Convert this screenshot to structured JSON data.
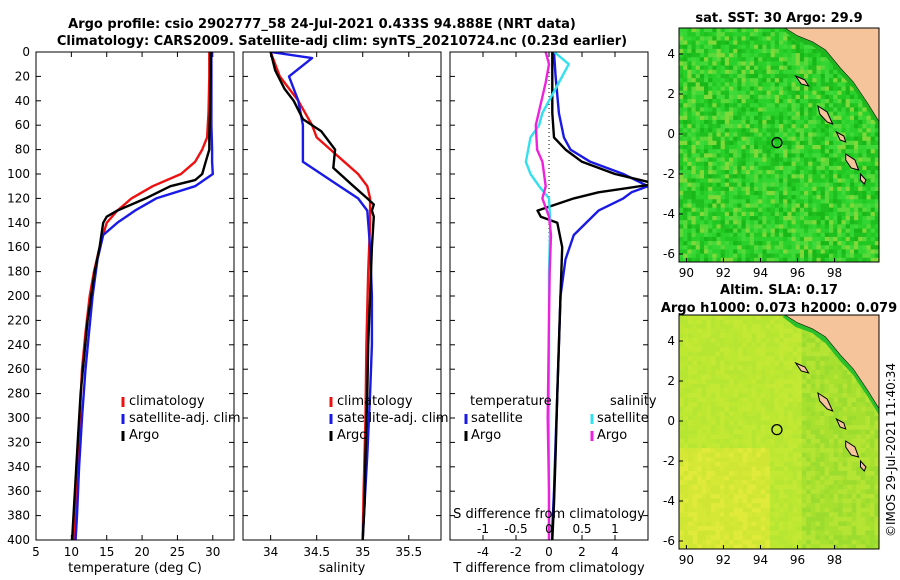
{
  "titles": {
    "line1": "Argo profile: csio 2902777_58 24-Jul-2021 0.433S 94.888E (NRT data)",
    "line2": "Climatology: CARS2009. Satellite-adj clim: synTS_20210724.nc (0.23d earlier)"
  },
  "colors": {
    "climatology": "#ee1111",
    "satellite": "#1a1ae6",
    "argo": "#000000",
    "sat_salinity": "#33e0ee",
    "argo_salinity": "#ee22dd",
    "land": "#f5c49a",
    "sst_green": "#27cc27",
    "sla_green": "#bce832"
  },
  "footer_credit": "©IMOS 29-Jul-2021 11:40:34",
  "chart_data": [
    {
      "id": "temperature",
      "type": "line",
      "xlabel": "temperature (deg C)",
      "ylabel": "",
      "xlim": [
        5,
        33
      ],
      "ylim": [
        400,
        0
      ],
      "xticks": [
        5,
        10,
        15,
        20,
        25,
        30
      ],
      "yticks": [
        0,
        20,
        40,
        60,
        80,
        100,
        120,
        140,
        160,
        180,
        200,
        220,
        240,
        260,
        280,
        300,
        320,
        340,
        360,
        380,
        400
      ],
      "legend": [
        "climatology",
        "satellite-adj. clim",
        "Argo"
      ],
      "legend_position": "bottom-right",
      "series": [
        {
          "name": "climatology",
          "color_key": "climatology",
          "x": [
            29.5,
            29.5,
            29.4,
            29.2,
            28.5,
            27.5,
            25.5,
            21.5,
            18.5,
            16.5,
            15.0,
            14.0,
            13.2,
            12.6,
            12.0,
            11.5,
            11.2,
            10.9,
            10.6,
            10.4
          ],
          "y": [
            0,
            20,
            50,
            70,
            80,
            90,
            100,
            110,
            120,
            130,
            140,
            160,
            180,
            200,
            230,
            260,
            300,
            340,
            380,
            400
          ]
        },
        {
          "name": "satellite-adj. clim",
          "color_key": "satellite",
          "x": [
            29.8,
            29.8,
            29.8,
            29.9,
            29.9,
            30.0,
            27.5,
            22.0,
            19.0,
            16.5,
            14.5,
            13.7,
            13.0,
            12.5,
            12.0,
            11.5,
            11.1,
            10.8,
            10.6
          ],
          "y": [
            0,
            20,
            60,
            80,
            90,
            100,
            110,
            120,
            130,
            140,
            150,
            170,
            200,
            230,
            260,
            300,
            340,
            380,
            400
          ]
        },
        {
          "name": "Argo",
          "color_key": "argo",
          "x": [
            29.7,
            29.7,
            29.6,
            29.5,
            29.5,
            29.0,
            28.5,
            27.5,
            24.0,
            20.5,
            16.5,
            15.0,
            14.5,
            14.0,
            13.3,
            12.8,
            12.3,
            11.8,
            11.3,
            10.9,
            10.5,
            10.2,
            10.1
          ],
          "y": [
            0,
            20,
            50,
            70,
            80,
            90,
            100,
            105,
            110,
            120,
            130,
            135,
            140,
            160,
            180,
            200,
            220,
            250,
            280,
            320,
            360,
            390,
            400
          ]
        }
      ]
    },
    {
      "id": "salinity",
      "type": "line",
      "xlabel": "salinity",
      "ylabel": "",
      "xlim": [
        33.7,
        35.85
      ],
      "ylim": [
        400,
        0
      ],
      "xticks": [
        34,
        34.5,
        35,
        35.5
      ],
      "legend": [
        "climatology",
        "satellite-adj. clim",
        "Argo"
      ],
      "legend_position": "bottom-right",
      "series": [
        {
          "name": "climatology",
          "color_key": "climatology",
          "x": [
            34.0,
            34.1,
            34.3,
            34.45,
            34.5,
            34.65,
            34.8,
            34.95,
            35.05,
            35.08,
            35.08,
            35.06,
            35.04,
            35.03,
            35.01,
            35.0
          ],
          "y": [
            0,
            20,
            40,
            60,
            70,
            80,
            90,
            100,
            110,
            120,
            140,
            180,
            240,
            300,
            360,
            400
          ]
        },
        {
          "name": "satellite-adj. clim",
          "color_key": "satellite",
          "x": [
            34.0,
            34.45,
            34.2,
            34.3,
            34.35,
            34.35,
            34.35,
            34.55,
            34.75,
            34.95,
            35.05,
            35.08,
            35.1,
            35.1,
            35.08,
            35.05,
            35.02,
            35.0
          ],
          "y": [
            0,
            5,
            20,
            40,
            60,
            80,
            90,
            100,
            110,
            120,
            130,
            160,
            200,
            240,
            280,
            330,
            370,
            400
          ]
        },
        {
          "name": "Argo",
          "color_key": "argo",
          "x": [
            34.0,
            34.05,
            34.15,
            34.25,
            34.35,
            34.55,
            34.7,
            34.68,
            34.9,
            35.05,
            35.12,
            35.1,
            35.12,
            35.1,
            35.08,
            35.06,
            35.05,
            35.03,
            35.02,
            35.0
          ],
          "y": [
            0,
            15,
            30,
            40,
            55,
            65,
            80,
            95,
            110,
            120,
            125,
            130,
            135,
            160,
            200,
            240,
            280,
            330,
            370,
            400
          ]
        }
      ]
    },
    {
      "id": "difference",
      "type": "line",
      "xlabel": "T difference from climatology",
      "xlabel_top": "S difference from climatology",
      "ylabel": "",
      "xlim": [
        -6,
        6
      ],
      "ylim": [
        400,
        0
      ],
      "xticks": [
        -4,
        -2,
        0,
        2,
        4
      ],
      "xtick_labels": [
        "-4",
        "-2",
        "0",
        "2",
        "4"
      ],
      "sticks": [
        -1,
        -0.5,
        0,
        0.5,
        1
      ],
      "stick_labels": [
        "-1",
        "-0.5",
        "0",
        "0.5",
        "1"
      ],
      "s_to_t_factor": 4,
      "legend_titles": [
        "temperature",
        "salinity"
      ],
      "legend": [
        "satellite",
        "Argo",
        "satellite",
        "Argo"
      ],
      "legend_position": "middle",
      "series": [
        {
          "name": "satellite",
          "quantity": "temperature",
          "color_key": "satellite",
          "x": [
            0.3,
            0.4,
            0.6,
            0.9,
            1.3,
            2.5,
            4.5,
            6.0,
            5.0,
            4.5,
            3.0,
            1.5,
            1.0,
            0.7,
            0.6,
            0.5,
            0.4,
            0.3,
            0.2,
            0.2
          ],
          "y": [
            0,
            20,
            50,
            70,
            80,
            90,
            100,
            110,
            115,
            120,
            130,
            150,
            170,
            200,
            240,
            280,
            320,
            360,
            390,
            400
          ]
        },
        {
          "name": "Argo",
          "quantity": "temperature",
          "color_key": "argo",
          "x": [
            0.2,
            0.2,
            0.2,
            0.3,
            1.0,
            2.0,
            4.0,
            6.5,
            3.0,
            1.5,
            -0.7,
            -0.5,
            0.5,
            0.8,
            0.7,
            0.6,
            0.5,
            0.4,
            0.3,
            0.2
          ],
          "y": [
            0,
            20,
            50,
            70,
            80,
            90,
            100,
            108,
            115,
            120,
            130,
            135,
            140,
            160,
            200,
            240,
            280,
            330,
            370,
            400
          ]
        },
        {
          "name": "satellite",
          "quantity": "salinity",
          "color_key": "sat_salinity",
          "x": [
            0.08,
            0.3,
            0.15,
            -0.1,
            -0.15,
            -0.28,
            -0.35,
            -0.28,
            -0.15,
            0.0,
            0.02,
            0.0,
            0.0,
            0.0,
            0.0
          ],
          "y": [
            0,
            10,
            25,
            50,
            60,
            70,
            90,
            100,
            110,
            120,
            140,
            180,
            240,
            320,
            400
          ]
        },
        {
          "name": "Argo",
          "quantity": "salinity",
          "color_key": "argo_salinity",
          "x": [
            -0.05,
            0.0,
            -0.05,
            -0.2,
            -0.18,
            -0.1,
            -0.05,
            -0.1,
            0.0,
            0.03,
            0.01,
            0.0,
            -0.02,
            0.0,
            0.0
          ],
          "y": [
            0,
            10,
            25,
            60,
            80,
            90,
            110,
            120,
            135,
            150,
            180,
            220,
            300,
            360,
            400
          ]
        }
      ]
    },
    {
      "id": "sst_map",
      "type": "heatmap",
      "title": "sat. SST: 30 Argo: 29.9",
      "xlim": [
        89.6,
        100.4
      ],
      "ylim": [
        -6.4,
        5.3
      ],
      "xticks": [
        90,
        92,
        94,
        96,
        98
      ],
      "yticks": [
        -6,
        -4,
        -2,
        0,
        2,
        4
      ],
      "marker": {
        "lon": 94.888,
        "lat": -0.433
      }
    },
    {
      "id": "sla_map",
      "type": "heatmap",
      "title": "Altim. SLA: 0.17",
      "subtitle": "Argo h1000: 0.073 h2000: 0.079",
      "xlim": [
        89.6,
        100.4
      ],
      "ylim": [
        -6.4,
        5.3
      ],
      "xticks": [
        90,
        92,
        94,
        96,
        98
      ],
      "yticks": [
        -6,
        -4,
        -2,
        0,
        2,
        4
      ],
      "marker": {
        "lon": 94.888,
        "lat": -0.433
      }
    }
  ]
}
